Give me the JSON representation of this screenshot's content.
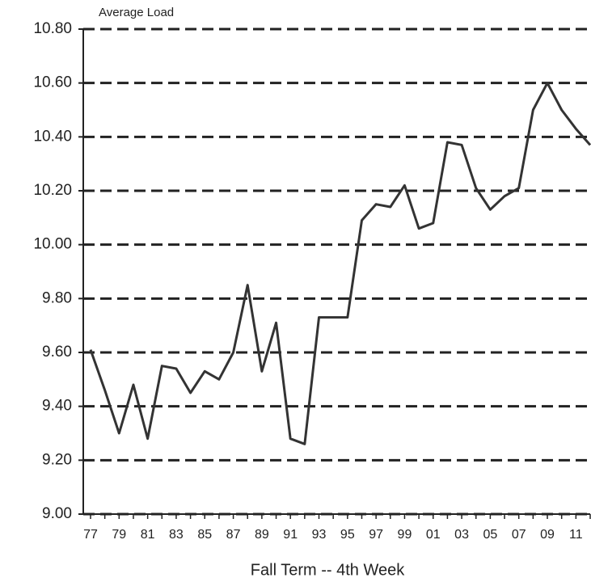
{
  "chart_data": {
    "type": "line",
    "y_axis_title": "Average Load",
    "x_axis_title": "Fall Term -- 4th Week",
    "categories": [
      "77",
      null,
      "79",
      null,
      "81",
      null,
      "83",
      null,
      "85",
      null,
      "87",
      null,
      "89",
      null,
      "91",
      null,
      "93",
      null,
      "95",
      null,
      "97",
      null,
      "99",
      null,
      "01",
      null,
      "03",
      null,
      "05",
      null,
      "07",
      null,
      "09",
      null,
      "11",
      null
    ],
    "series": [
      {
        "color": "#333333",
        "values": [
          9.61,
          9.46,
          9.3,
          9.48,
          9.28,
          9.55,
          9.54,
          9.45,
          9.53,
          9.5,
          9.6,
          9.85,
          9.53,
          9.71,
          9.28,
          9.26,
          9.73,
          9.73,
          9.73,
          10.09,
          10.15,
          10.14,
          10.22,
          10.06,
          10.08,
          10.38,
          10.37,
          10.21,
          10.13,
          10.18,
          10.21,
          10.5,
          10.6,
          10.5,
          10.43,
          10.37
        ]
      }
    ],
    "ylim": [
      9.0,
      10.8
    ],
    "yticks": [
      {
        "value": 9.0,
        "label": "9.00"
      },
      {
        "value": 9.2,
        "label": "9.20"
      },
      {
        "value": 9.4,
        "label": "9.40"
      },
      {
        "value": 9.6,
        "label": "9.60"
      },
      {
        "value": 9.8,
        "label": "9.80"
      },
      {
        "value": 10.0,
        "label": "10.00"
      },
      {
        "value": 10.2,
        "label": "10.20"
      },
      {
        "value": 10.4,
        "label": "10.40"
      },
      {
        "value": 10.6,
        "label": "10.60"
      },
      {
        "value": 10.8,
        "label": "10.80"
      }
    ],
    "grid": true
  }
}
